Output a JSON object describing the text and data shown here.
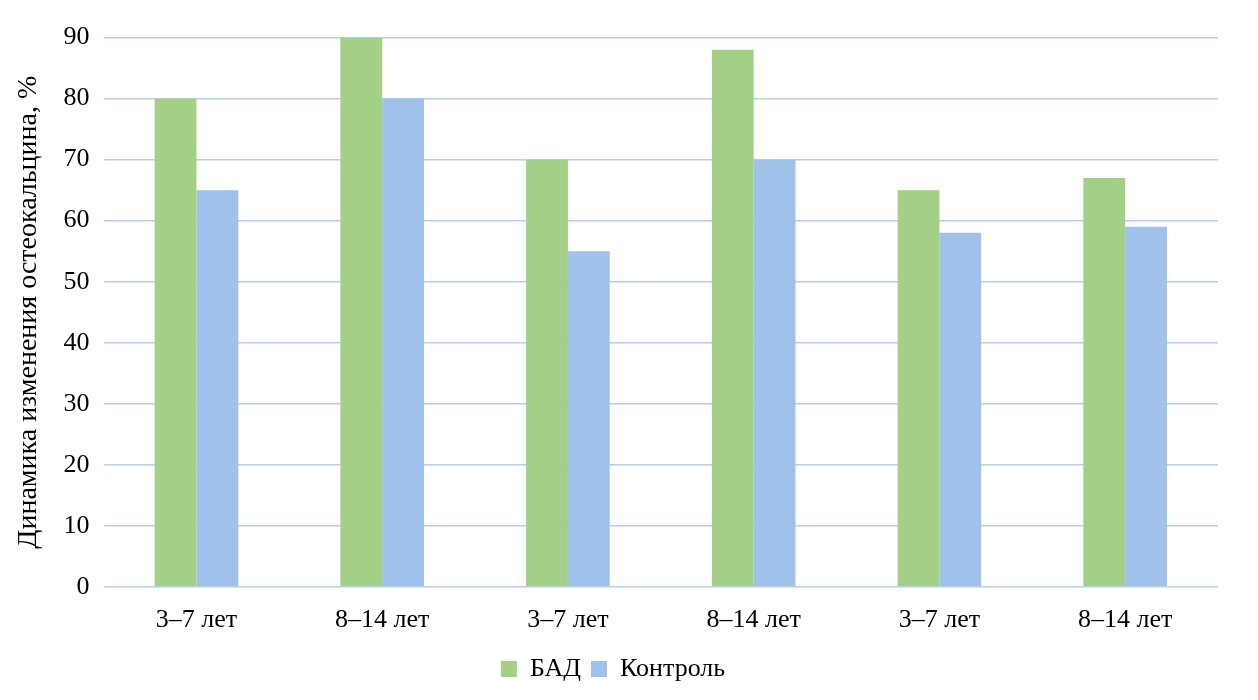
{
  "chart_data": {
    "type": "bar",
    "ylabel": "Динамика изменения остеокальцина, %",
    "categories": [
      "3–7 лет",
      "8–14 лет",
      "3–7 лет",
      "8–14 лет",
      "3–7 лет",
      "8–14 лет"
    ],
    "series": [
      {
        "name": "БАД",
        "color": "#a3cf87",
        "values": [
          80,
          90,
          70,
          88,
          65,
          67
        ]
      },
      {
        "name": "Контроль",
        "color": "#9fc1ea",
        "values": [
          65,
          80,
          55,
          70,
          58,
          59
        ]
      }
    ],
    "ylim": [
      0,
      90
    ],
    "yticks": [
      0,
      10,
      20,
      30,
      40,
      50,
      60,
      70,
      80,
      90
    ],
    "grid": "y",
    "legend": "bottom"
  }
}
